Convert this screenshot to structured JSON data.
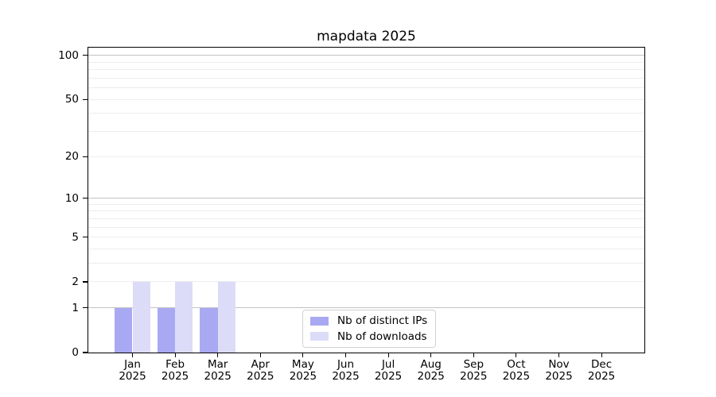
{
  "chart_data": {
    "type": "bar",
    "title": "mapdata 2025",
    "categories": [
      "Jan",
      "Feb",
      "Mar",
      "Apr",
      "May",
      "Jun",
      "Jul",
      "Aug",
      "Sep",
      "Oct",
      "Nov",
      "Dec"
    ],
    "category_year": "2025",
    "series": [
      {
        "name": "Nb of distinct IPs",
        "color": "#a9a9f3",
        "values": [
          1,
          1,
          1,
          0,
          0,
          0,
          0,
          0,
          0,
          0,
          0,
          0
        ]
      },
      {
        "name": "Nb of downloads",
        "color": "#dcdcf8",
        "values": [
          2,
          2,
          2,
          0,
          0,
          0,
          0,
          0,
          0,
          0,
          0,
          0
        ]
      }
    ],
    "xlabel": "",
    "ylabel": "",
    "y_scale": "log10(value+1)",
    "y_ticks": [
      0,
      1,
      2,
      5,
      10,
      20,
      50,
      100
    ],
    "y_minor_gridlines": [
      2,
      3,
      4,
      5,
      6,
      7,
      8,
      9,
      20,
      30,
      40,
      50,
      60,
      70,
      80,
      90
    ],
    "y_major_gridlines": [
      1,
      10,
      100
    ],
    "ylim": [
      0,
      113
    ],
    "grid": true,
    "legend_position": "lower center inside",
    "colors": {
      "grid_major": "#c3c3c3",
      "grid_minor": "#ededed",
      "spine": "#000000",
      "background": "#ffffff"
    }
  }
}
